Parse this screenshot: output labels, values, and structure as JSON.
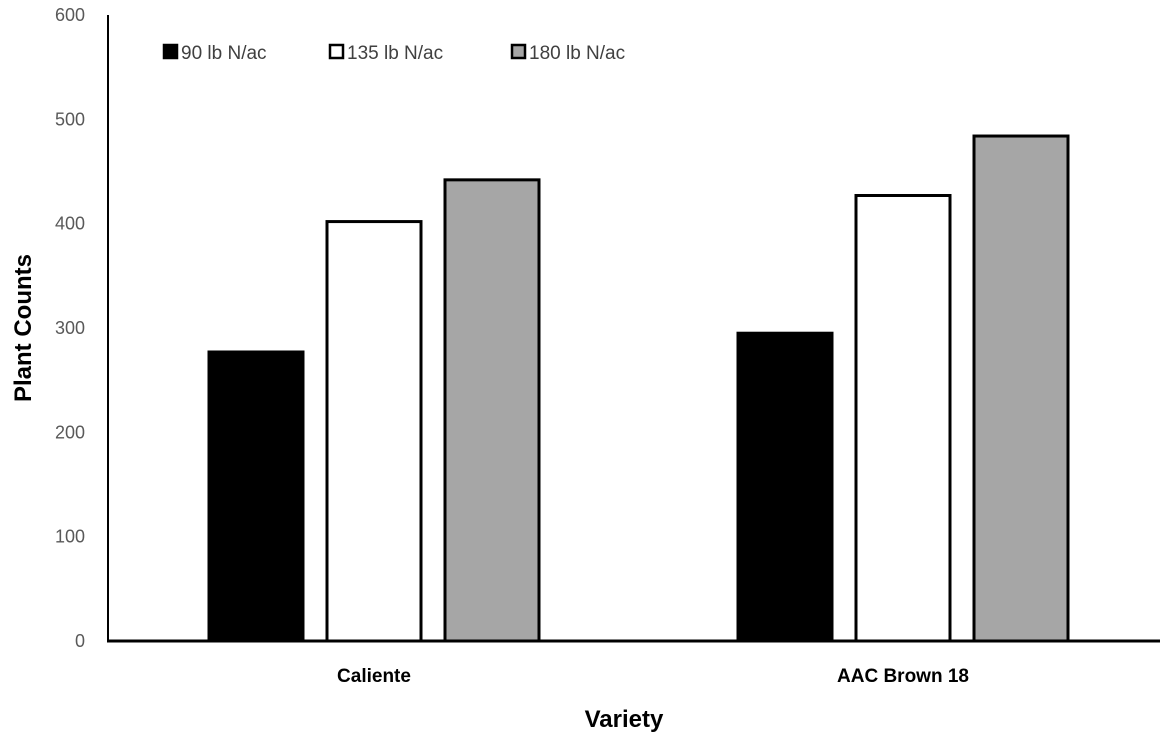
{
  "chart_data": {
    "type": "bar",
    "title": "",
    "xlabel": "Variety",
    "ylabel": "Plant Counts",
    "categories": [
      "Caliente",
      "AAC Brown 18"
    ],
    "series": [
      {
        "name": "90 lb N/ac",
        "color": "#000000",
        "values": [
          277,
          295
        ]
      },
      {
        "name": "135 lb N/ac",
        "color": "#ffffff",
        "values": [
          402,
          427
        ]
      },
      {
        "name": "180 lb N/ac",
        "color": "#a6a6a6",
        "values": [
          442,
          484
        ]
      }
    ],
    "ylim": [
      0,
      600
    ],
    "yticks": [
      0,
      100,
      200,
      300,
      400,
      500,
      600
    ],
    "grid": false,
    "legend_position": "top-left"
  }
}
